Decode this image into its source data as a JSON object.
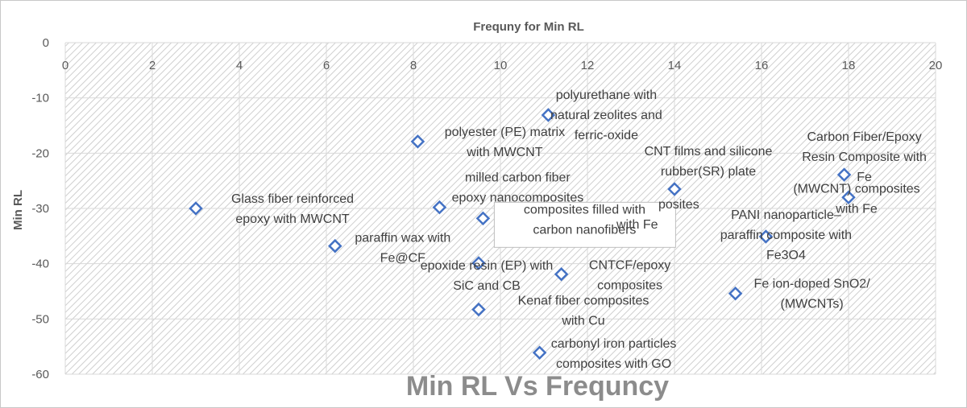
{
  "chart_data": {
    "type": "scatter",
    "title": "Frequny for Min RL",
    "bottom_title": "Min RL Vs Frequncy",
    "xlabel": "",
    "ylabel": "Min RL",
    "xlim": [
      0,
      20
    ],
    "ylim": [
      -60,
      0
    ],
    "x_ticks": [
      "0",
      "2",
      "4",
      "6",
      "8",
      "10",
      "12",
      "14",
      "16",
      "18",
      "20"
    ],
    "y_ticks": [
      "0",
      "-10",
      "-20",
      "-30",
      "-40",
      "-50",
      "-60"
    ],
    "x_axis_position": "top",
    "grid": true,
    "legend": "none",
    "marker": "diamond-open",
    "marker_color": "#4472c4",
    "series": [
      {
        "points": [
          {
            "x": 3.0,
            "y": -30.0,
            "label_lines": [
              "Glass fiber reinforced",
              "epoxy with MWCNT"
            ]
          },
          {
            "x": 6.2,
            "y": -36.8,
            "label_lines": [
              "paraffin wax with",
              "Fe@CF"
            ]
          },
          {
            "x": 8.1,
            "y": -17.9,
            "label_lines": [
              "polyester (PE) matrix",
              "with MWCNT"
            ]
          },
          {
            "x": 8.6,
            "y": -29.8,
            "label_lines": [
              "milled carbon fiber",
              "epoxy nanocomposites"
            ]
          },
          {
            "x": 9.5,
            "y": -39.9,
            "label_lines": [
              "epoxide resin (EP) with",
              "SiC and CB"
            ]
          },
          {
            "x": 9.5,
            "y": -48.3,
            "label_lines": [
              "Kenaf fiber composites",
              "with Cu"
            ]
          },
          {
            "x": 9.6,
            "y": -31.8,
            "label_lines": [
              "composites filled with",
              "carbon nanofibers"
            ]
          },
          {
            "x": 10.9,
            "y": -56.1,
            "label_lines": [
              "carbonyl iron particles",
              "composites with GO"
            ]
          },
          {
            "x": 11.1,
            "y": -13.1,
            "label_lines": [
              "polyurethane with",
              "natural zeolites and",
              "ferric-oxide"
            ]
          },
          {
            "x": 11.4,
            "y": -41.9,
            "label_lines": [
              "CNTCF/epoxy",
              "composites"
            ]
          },
          {
            "x": 14.0,
            "y": -26.5,
            "label_lines": [
              "CNT films and silicone",
              "rubber(SR) plate"
            ]
          },
          {
            "x": 15.4,
            "y": -45.4,
            "label_lines": [
              "Fe ion-doped SnO2/",
              "(MWCNTs)"
            ]
          },
          {
            "x": 16.1,
            "y": -35.1,
            "label_lines": [
              "PANI nanoparticle–",
              "paraffin composite with",
              "Fe3O4"
            ]
          },
          {
            "x": 17.9,
            "y": -23.9,
            "label_lines": [
              "Carbon Fiber/Epoxy",
              "Resin Composite with",
              "Fe"
            ]
          },
          {
            "x": 18.0,
            "y": -28.0,
            "label_lines": [
              "(MWCNT) composites",
              "with Fe"
            ]
          }
        ]
      }
    ],
    "partial_labels": [
      {
        "text": "posites",
        "near_point": 10
      },
      {
        "text": "with Fe",
        "near_point": 10
      }
    ]
  }
}
